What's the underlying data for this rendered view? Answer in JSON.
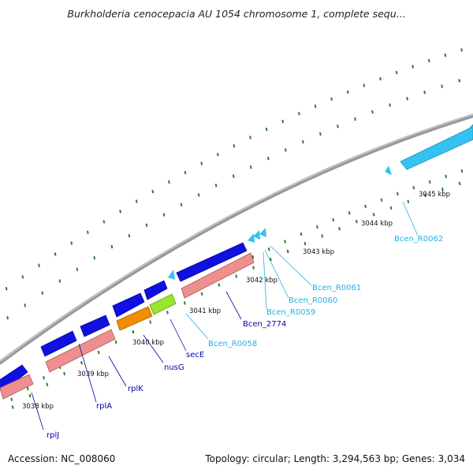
{
  "title": "Burkholderia cenocepacia AU 1054 chromosome 1, complete sequ...",
  "footer": {
    "accession": "Accession: NC_008060",
    "summary": "Topology: circular; Length: 3,294,563 bp; Genes: 3,034"
  },
  "colors": {
    "backbone": "#888888",
    "cds_forward": "#0000e6",
    "cds_reverse": "#ef8c8c",
    "trna": "#33c3f0",
    "orange_gene": "#f28c00",
    "lime_gene": "#99e62e",
    "ticks": "#2e7d32",
    "label_dark": "#0000aa",
    "label_light": "#1fb2ea"
  },
  "scale_labels": [
    "3038 kbp",
    "3039 kbp",
    "3040 kbp",
    "3041 kbp",
    "3042 kbp",
    "3043 kbp",
    "3044 kbp",
    "3045 kbp"
  ],
  "gene_labels": [
    {
      "text": "rplJ",
      "tone": "dark"
    },
    {
      "text": "rplA",
      "tone": "dark"
    },
    {
      "text": "rplK",
      "tone": "dark"
    },
    {
      "text": "nusG",
      "tone": "dark"
    },
    {
      "text": "secE",
      "tone": "dark"
    },
    {
      "text": "Bcen_R0058",
      "tone": "light"
    },
    {
      "text": "Bcen_2774",
      "tone": "dark"
    },
    {
      "text": "Bcen_R0059",
      "tone": "light"
    },
    {
      "text": "Bcen_R0060",
      "tone": "light"
    },
    {
      "text": "Bcen_R0061",
      "tone": "light"
    },
    {
      "text": "Bcen_R0062",
      "tone": "light"
    }
  ]
}
